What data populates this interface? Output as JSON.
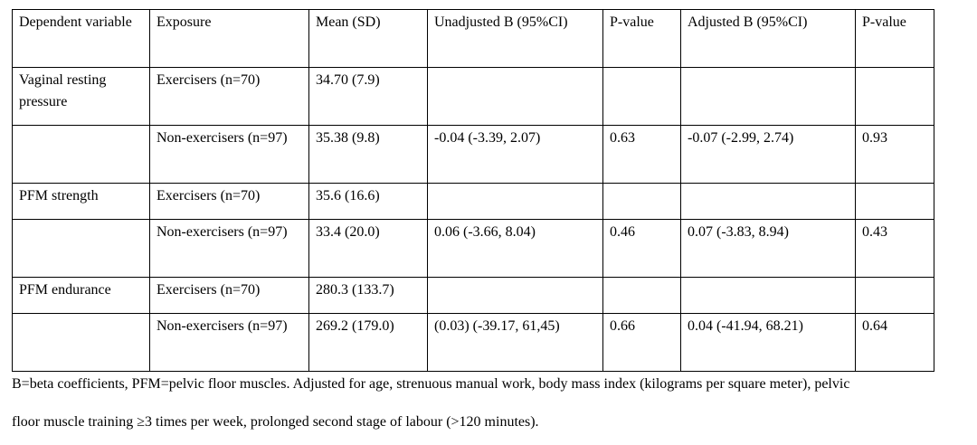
{
  "table": {
    "headers": [
      "Dependent variable",
      "Exposure",
      "Mean (SD)",
      "Unadjusted B (95%CI)",
      "P-value",
      "Adjusted B (95%CI)",
      "P-value"
    ],
    "rows": [
      [
        "Vaginal resting pressure",
        "Exercisers (n=70)",
        "34.70 (7.9)",
        "",
        "",
        "",
        ""
      ],
      [
        "",
        "Non-exercisers (n=97)",
        "35.38 (9.8)",
        "-0.04 (-3.39, 2.07)",
        "0.63",
        "-0.07 (-2.99, 2.74)",
        "0.93"
      ],
      [
        "PFM strength",
        "Exercisers (n=70)",
        "35.6 (16.6)",
        "",
        "",
        "",
        ""
      ],
      [
        "",
        "Non-exercisers (n=97)",
        "33.4 (20.0)",
        "0.06 (-3.66, 8.04)",
        "0.46",
        "0.07 (-3.83, 8.94)",
        "0.43"
      ],
      [
        "PFM endurance",
        "Exercisers (n=70)",
        "280.3 (133.7)",
        "",
        "",
        "",
        ""
      ],
      [
        "",
        "Non-exercisers (n=97)",
        "269.2 (179.0)",
        "(0.03) (-39.17, 61,45)",
        "0.66",
        "0.04 (-41.94, 68.21)",
        "0.64"
      ]
    ]
  },
  "footnote": {
    "line1": "B=beta coefficients, PFM=pelvic floor muscles. Adjusted for age, strenuous manual work, body mass index (kilograms per square meter), pelvic",
    "line2": "floor muscle training ≥3 times per week, prolonged second stage of labour (>120 minutes)."
  }
}
